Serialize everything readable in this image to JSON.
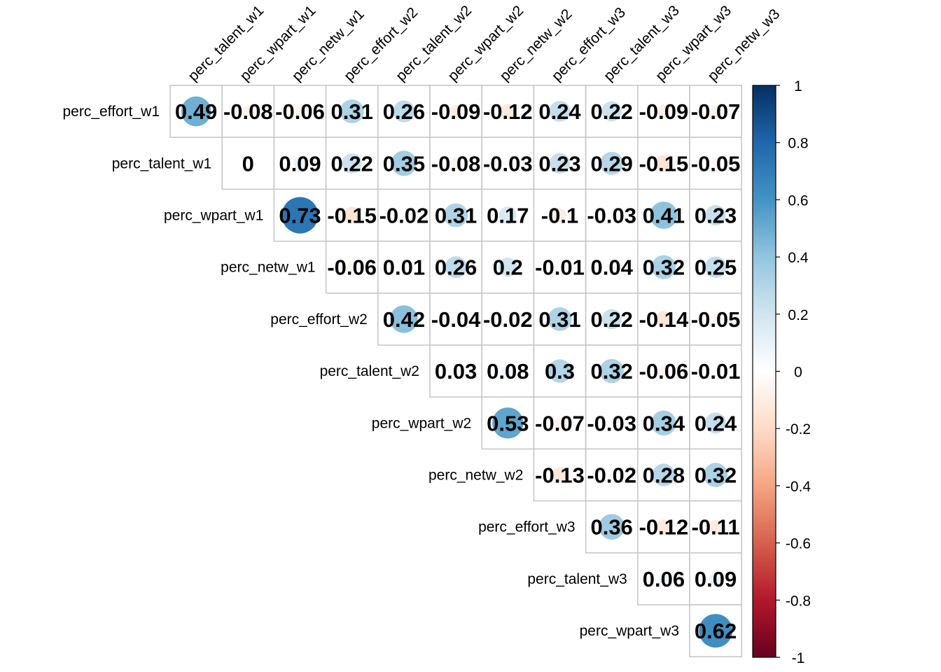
{
  "chart_data": {
    "type": "heatmap",
    "variables": [
      "perc_effort_w1",
      "perc_talent_w1",
      "perc_wpart_w1",
      "perc_netw_w1",
      "perc_effort_w2",
      "perc_talent_w2",
      "perc_wpart_w2",
      "perc_netw_w2",
      "perc_effort_w3",
      "perc_talent_w3",
      "perc_wpart_w3",
      "perc_netw_w3"
    ],
    "row_labels": [
      "perc_effort_w1",
      "perc_talent_w1",
      "perc_wpart_w1",
      "perc_netw_w1",
      "perc_effort_w2",
      "perc_talent_w2",
      "perc_wpart_w2",
      "perc_netw_w2",
      "perc_effort_w3",
      "perc_talent_w3",
      "perc_wpart_w3"
    ],
    "col_labels": [
      "perc_talent_w1",
      "perc_wpart_w1",
      "perc_netw_w1",
      "perc_effort_w2",
      "perc_talent_w2",
      "perc_wpart_w2",
      "perc_netw_w2",
      "perc_effort_w3",
      "perc_talent_w3",
      "perc_wpart_w3",
      "perc_netw_w3"
    ],
    "layout": "upper-triangle",
    "marker": "circle",
    "value_labels": [
      [
        "0.49",
        "-0.08",
        "-0.06",
        "0.31",
        "0.26",
        "-0.09",
        "-0.12",
        "0.24",
        "0.22",
        "-0.09",
        "-0.07"
      ],
      [
        "0",
        "0.09",
        "0.22",
        "0.35",
        "-0.08",
        "-0.03",
        "0.23",
        "0.29",
        "-0.15",
        "-0.05"
      ],
      [
        "0.73",
        "-0.15",
        "-0.02",
        "0.31",
        "0.17",
        "-0.1",
        "-0.03",
        "0.41",
        "0.23"
      ],
      [
        "-0.06",
        "0.01",
        "0.26",
        "0.2",
        "-0.01",
        "0.04",
        "0.32",
        "0.25"
      ],
      [
        "0.42",
        "-0.04",
        "-0.02",
        "0.31",
        "0.22",
        "-0.14",
        "-0.05"
      ],
      [
        "0.03",
        "0.08",
        "0.3",
        "0.32",
        "-0.06",
        "-0.01"
      ],
      [
        "0.53",
        "-0.07",
        "-0.03",
        "0.34",
        "0.24"
      ],
      [
        "-0.13",
        "-0.02",
        "0.28",
        "0.32"
      ],
      [
        "0.36",
        "-0.12",
        "-0.11"
      ],
      [
        "0.06",
        "0.09"
      ],
      [
        "0.62"
      ]
    ],
    "colorbar": {
      "range": [
        -1,
        1
      ],
      "tick_labels": [
        "1",
        "0.8",
        "0.6",
        "0.4",
        "0.2",
        "0",
        "-0.2",
        "-0.4",
        "-0.6",
        "-0.8",
        "-1"
      ],
      "position": "right"
    },
    "colors": {
      "negative_end": "#67001F",
      "neutral": "#FFFFFF",
      "positive_end": "#053061",
      "grid": "#C8C8C8"
    }
  }
}
